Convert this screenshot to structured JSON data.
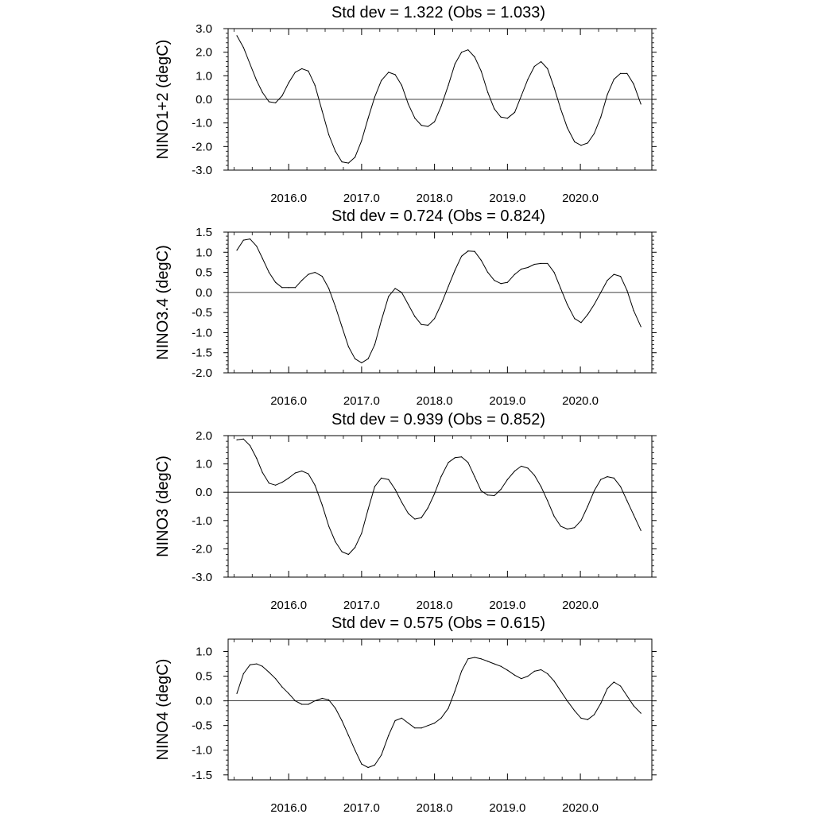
{
  "chart_data": [
    {
      "type": "line",
      "title": "Std dev = 1.322 (Obs = 1.033)",
      "xlabel": "",
      "ylabel": "NINO1+2 (degC)",
      "xlim": [
        2015.17,
        2020.98
      ],
      "ylim": [
        -3.0,
        3.0
      ],
      "x_ticks": [
        2016.0,
        2017.0,
        2018.0,
        2019.0,
        2020.0
      ],
      "x_tick_labels": [
        "2016.0",
        "2017.0",
        "2018.0",
        "2019.0",
        "2020.0"
      ],
      "y_ticks": [
        -3.0,
        -2.0,
        -1.0,
        0.0,
        1.0,
        2.0,
        3.0
      ],
      "y_tick_labels": [
        "-3.0",
        "-2.0",
        "-1.0",
        "0.0",
        "1.0",
        "2.0",
        "3.0"
      ],
      "zero_line": true,
      "grid": false,
      "series": [
        {
          "x": [
            2015.29,
            2015.38,
            2015.47,
            2015.56,
            2015.64,
            2015.73,
            2015.82,
            2015.91,
            2016.0,
            2016.09,
            2016.18,
            2016.27,
            2016.36,
            2016.46,
            2016.55,
            2016.64,
            2016.73,
            2016.82,
            2016.91,
            2017.0,
            2017.09,
            2017.18,
            2017.27,
            2017.37,
            2017.46,
            2017.55,
            2017.64,
            2017.73,
            2017.82,
            2017.91,
            2018.0,
            2018.09,
            2018.19,
            2018.28,
            2018.37,
            2018.46,
            2018.55,
            2018.64,
            2018.73,
            2018.82,
            2018.91,
            2019.0,
            2019.1,
            2019.19,
            2019.28,
            2019.37,
            2019.46,
            2019.55,
            2019.64,
            2019.73,
            2019.82,
            2019.92,
            2020.01,
            2020.1,
            2020.19,
            2020.28,
            2020.37,
            2020.46,
            2020.55,
            2020.64,
            2020.73,
            2020.83
          ],
          "y": [
            2.7,
            2.2,
            1.5,
            0.8,
            0.3,
            -0.1,
            -0.15,
            0.15,
            0.7,
            1.15,
            1.3,
            1.2,
            0.6,
            -0.5,
            -1.5,
            -2.2,
            -2.65,
            -2.7,
            -2.45,
            -1.75,
            -0.8,
            0.1,
            0.8,
            1.15,
            1.05,
            0.6,
            -0.2,
            -0.8,
            -1.1,
            -1.15,
            -0.95,
            -0.3,
            0.6,
            1.5,
            2.0,
            2.1,
            1.8,
            1.2,
            0.3,
            -0.4,
            -0.75,
            -0.8,
            -0.55,
            0.15,
            0.85,
            1.4,
            1.6,
            1.3,
            0.5,
            -0.4,
            -1.2,
            -1.8,
            -1.95,
            -1.85,
            -1.45,
            -0.75,
            0.2,
            0.85,
            1.1,
            1.1,
            0.65,
            -0.2
          ]
        }
      ]
    },
    {
      "type": "line",
      "title": "Std dev = 0.724 (Obs = 0.824)",
      "xlabel": "",
      "ylabel": "NINO3.4 (degC)",
      "xlim": [
        2015.17,
        2020.98
      ],
      "ylim": [
        -2.0,
        1.5
      ],
      "x_ticks": [
        2016.0,
        2017.0,
        2018.0,
        2019.0,
        2020.0
      ],
      "x_tick_labels": [
        "2016.0",
        "2017.0",
        "2018.0",
        "2019.0",
        "2020.0"
      ],
      "y_ticks": [
        -2.0,
        -1.5,
        -1.0,
        -0.5,
        0.0,
        0.5,
        1.0,
        1.5
      ],
      "y_tick_labels": [
        "-2.0",
        "-1.5",
        "-1.0",
        "-0.5",
        "0.0",
        "0.5",
        "1.0",
        "1.5"
      ],
      "zero_line": true,
      "grid": false,
      "series": [
        {
          "x": [
            2015.29,
            2015.38,
            2015.47,
            2015.56,
            2015.64,
            2015.73,
            2015.82,
            2015.91,
            2016.0,
            2016.09,
            2016.18,
            2016.27,
            2016.36,
            2016.46,
            2016.55,
            2016.64,
            2016.73,
            2016.82,
            2016.91,
            2017.0,
            2017.09,
            2017.18,
            2017.27,
            2017.37,
            2017.46,
            2017.55,
            2017.64,
            2017.73,
            2017.82,
            2017.91,
            2018.0,
            2018.09,
            2018.19,
            2018.28,
            2018.37,
            2018.46,
            2018.55,
            2018.64,
            2018.73,
            2018.82,
            2018.91,
            2019.0,
            2019.1,
            2019.19,
            2019.28,
            2019.37,
            2019.46,
            2019.55,
            2019.64,
            2019.73,
            2019.82,
            2019.92,
            2020.01,
            2020.1,
            2020.19,
            2020.28,
            2020.37,
            2020.46,
            2020.55,
            2020.64,
            2020.73,
            2020.83
          ],
          "y": [
            1.05,
            1.3,
            1.33,
            1.15,
            0.85,
            0.5,
            0.25,
            0.12,
            0.12,
            0.12,
            0.3,
            0.45,
            0.5,
            0.4,
            0.1,
            -0.35,
            -0.85,
            -1.35,
            -1.65,
            -1.75,
            -1.65,
            -1.3,
            -0.7,
            -0.1,
            0.1,
            0.0,
            -0.3,
            -0.6,
            -0.8,
            -0.82,
            -0.65,
            -0.3,
            0.15,
            0.55,
            0.9,
            1.03,
            1.02,
            0.8,
            0.5,
            0.3,
            0.22,
            0.25,
            0.45,
            0.58,
            0.62,
            0.7,
            0.72,
            0.72,
            0.5,
            0.1,
            -0.3,
            -0.65,
            -0.75,
            -0.55,
            -0.3,
            0.0,
            0.3,
            0.45,
            0.4,
            0.05,
            -0.45,
            -0.85
          ]
        }
      ]
    },
    {
      "type": "line",
      "title": "Std dev = 0.939 (Obs = 0.852)",
      "xlabel": "",
      "ylabel": "NINO3 (degC)",
      "xlim": [
        2015.17,
        2020.98
      ],
      "ylim": [
        -3.0,
        2.0
      ],
      "x_ticks": [
        2016.0,
        2017.0,
        2018.0,
        2019.0,
        2020.0
      ],
      "x_tick_labels": [
        "2016.0",
        "2017.0",
        "2018.0",
        "2019.0",
        "2020.0"
      ],
      "y_ticks": [
        -3.0,
        -2.0,
        -1.0,
        0.0,
        1.0,
        2.0
      ],
      "y_tick_labels": [
        "-3.0",
        "-2.0",
        "-1.0",
        "0.0",
        "1.0",
        "2.0"
      ],
      "zero_line": true,
      "grid": false,
      "series": [
        {
          "x": [
            2015.29,
            2015.38,
            2015.47,
            2015.56,
            2015.64,
            2015.73,
            2015.82,
            2015.91,
            2016.0,
            2016.09,
            2016.18,
            2016.27,
            2016.36,
            2016.46,
            2016.55,
            2016.64,
            2016.73,
            2016.82,
            2016.91,
            2017.0,
            2017.09,
            2017.18,
            2017.27,
            2017.37,
            2017.46,
            2017.55,
            2017.64,
            2017.73,
            2017.82,
            2017.91,
            2018.0,
            2018.09,
            2018.19,
            2018.28,
            2018.37,
            2018.46,
            2018.55,
            2018.64,
            2018.73,
            2018.82,
            2018.91,
            2019.0,
            2019.1,
            2019.19,
            2019.28,
            2019.37,
            2019.46,
            2019.55,
            2019.64,
            2019.73,
            2019.82,
            2019.92,
            2020.01,
            2020.1,
            2020.19,
            2020.28,
            2020.37,
            2020.46,
            2020.55,
            2020.64,
            2020.73,
            2020.83
          ],
          "y": [
            1.85,
            1.88,
            1.65,
            1.2,
            0.7,
            0.32,
            0.25,
            0.35,
            0.5,
            0.68,
            0.75,
            0.65,
            0.25,
            -0.45,
            -1.2,
            -1.75,
            -2.1,
            -2.2,
            -1.95,
            -1.45,
            -0.6,
            0.2,
            0.5,
            0.45,
            0.1,
            -0.35,
            -0.75,
            -0.95,
            -0.9,
            -0.55,
            -0.05,
            0.55,
            1.05,
            1.22,
            1.25,
            1.05,
            0.55,
            0.05,
            -0.1,
            -0.12,
            0.1,
            0.45,
            0.75,
            0.92,
            0.85,
            0.6,
            0.2,
            -0.3,
            -0.85,
            -1.2,
            -1.3,
            -1.25,
            -1.0,
            -0.5,
            0.05,
            0.45,
            0.55,
            0.5,
            0.2,
            -0.3,
            -0.8,
            -1.35
          ]
        }
      ]
    },
    {
      "type": "line",
      "title": "Std dev = 0.575 (Obs = 0.615)",
      "xlabel": "",
      "ylabel": "NINO4 (degC)",
      "xlim": [
        2015.17,
        2020.98
      ],
      "ylim": [
        -1.6,
        1.25
      ],
      "x_ticks": [
        2016.0,
        2017.0,
        2018.0,
        2019.0,
        2020.0
      ],
      "x_tick_labels": [
        "2016.0",
        "2017.0",
        "2018.0",
        "2019.0",
        "2020.0"
      ],
      "y_ticks": [
        -1.5,
        -1.0,
        -0.5,
        0.0,
        0.5,
        1.0
      ],
      "y_tick_labels": [
        "-1.5",
        "-1.0",
        "-0.5",
        "0.0",
        "0.5",
        "1.0"
      ],
      "zero_line": true,
      "grid": false,
      "series": [
        {
          "x": [
            2015.29,
            2015.38,
            2015.47,
            2015.56,
            2015.64,
            2015.73,
            2015.82,
            2015.91,
            2016.0,
            2016.09,
            2016.18,
            2016.27,
            2016.36,
            2016.46,
            2016.55,
            2016.64,
            2016.73,
            2016.82,
            2016.91,
            2017.0,
            2017.09,
            2017.18,
            2017.27,
            2017.37,
            2017.46,
            2017.55,
            2017.64,
            2017.73,
            2017.82,
            2017.91,
            2018.0,
            2018.09,
            2018.19,
            2018.28,
            2018.37,
            2018.46,
            2018.55,
            2018.64,
            2018.73,
            2018.82,
            2018.91,
            2019.0,
            2019.1,
            2019.19,
            2019.28,
            2019.37,
            2019.46,
            2019.55,
            2019.64,
            2019.73,
            2019.82,
            2019.92,
            2020.01,
            2020.1,
            2020.19,
            2020.28,
            2020.37,
            2020.46,
            2020.55,
            2020.64,
            2020.73,
            2020.83
          ],
          "y": [
            0.15,
            0.55,
            0.73,
            0.75,
            0.7,
            0.58,
            0.45,
            0.28,
            0.15,
            0.0,
            -0.07,
            -0.07,
            0.0,
            0.05,
            0.02,
            -0.15,
            -0.4,
            -0.7,
            -1.0,
            -1.28,
            -1.35,
            -1.3,
            -1.1,
            -0.7,
            -0.4,
            -0.35,
            -0.45,
            -0.55,
            -0.55,
            -0.5,
            -0.45,
            -0.35,
            -0.15,
            0.2,
            0.6,
            0.85,
            0.88,
            0.85,
            0.8,
            0.75,
            0.7,
            0.62,
            0.52,
            0.45,
            0.5,
            0.6,
            0.63,
            0.55,
            0.4,
            0.2,
            0.0,
            -0.2,
            -0.35,
            -0.38,
            -0.28,
            -0.05,
            0.25,
            0.38,
            0.3,
            0.1,
            -0.1,
            -0.25
          ]
        }
      ]
    }
  ]
}
